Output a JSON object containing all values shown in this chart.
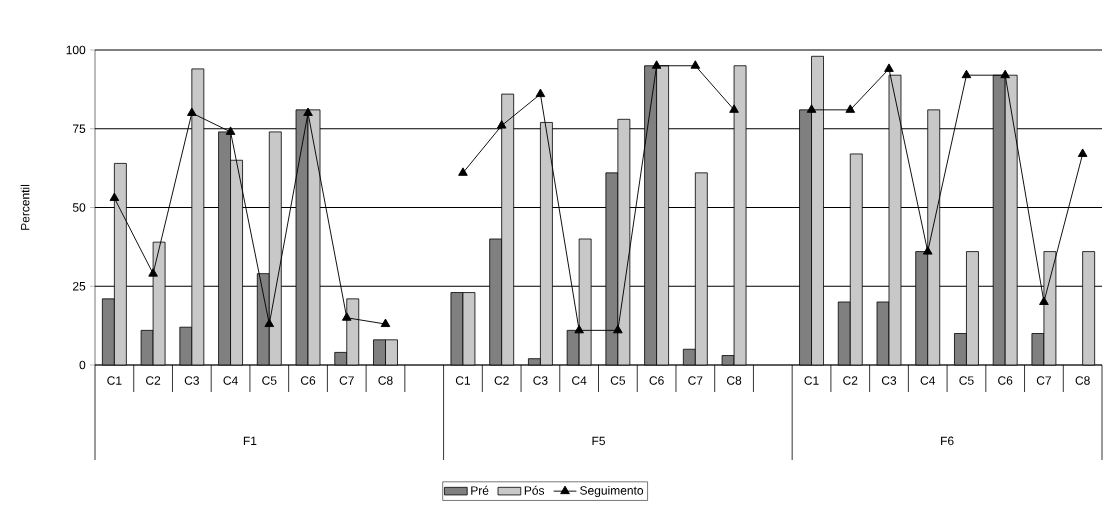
{
  "chart_data": {
    "type": "bar",
    "ylabel": "Percentil",
    "categories": [
      "C1",
      "C2",
      "C3",
      "C4",
      "C5",
      "C6",
      "C7",
      "C8",
      null,
      "C1",
      "C2",
      "C3",
      "C4",
      "C5",
      "C6",
      "C7",
      "C8",
      null,
      "C1",
      "C2",
      "C3",
      "C4",
      "C5",
      "C6",
      "C7",
      "C8"
    ],
    "series": [
      {
        "name": "Pré",
        "color": "#808080",
        "values": [
          21,
          11,
          12,
          74,
          29,
          81,
          4,
          8,
          null,
          23,
          40,
          2,
          11,
          61,
          95,
          5,
          3,
          null,
          81,
          20,
          20,
          36,
          10,
          92,
          10,
          null
        ]
      },
      {
        "name": "Pós",
        "color": "#c8c8c8",
        "values": [
          64,
          39,
          94,
          65,
          74,
          81,
          21,
          8,
          null,
          23,
          86,
          77,
          40,
          78,
          95,
          61,
          95,
          null,
          98,
          67,
          92,
          81,
          36,
          92,
          36,
          36
        ]
      },
      {
        "name": "Seguimento",
        "type": "line",
        "color": "#000000",
        "marker": "triangle",
        "values": [
          53,
          29,
          80,
          74,
          13,
          80,
          15,
          13,
          null,
          61,
          76,
          86,
          11,
          11,
          95,
          95,
          81,
          null,
          81,
          81,
          94,
          36,
          92,
          92,
          20,
          67
        ]
      }
    ],
    "annotations": [
      "F1",
      "F5",
      "F6"
    ],
    "ylim": [
      0,
      100
    ],
    "yticks": [
      0,
      25,
      50,
      75,
      100
    ],
    "grid": "y",
    "legend": "bottom"
  }
}
